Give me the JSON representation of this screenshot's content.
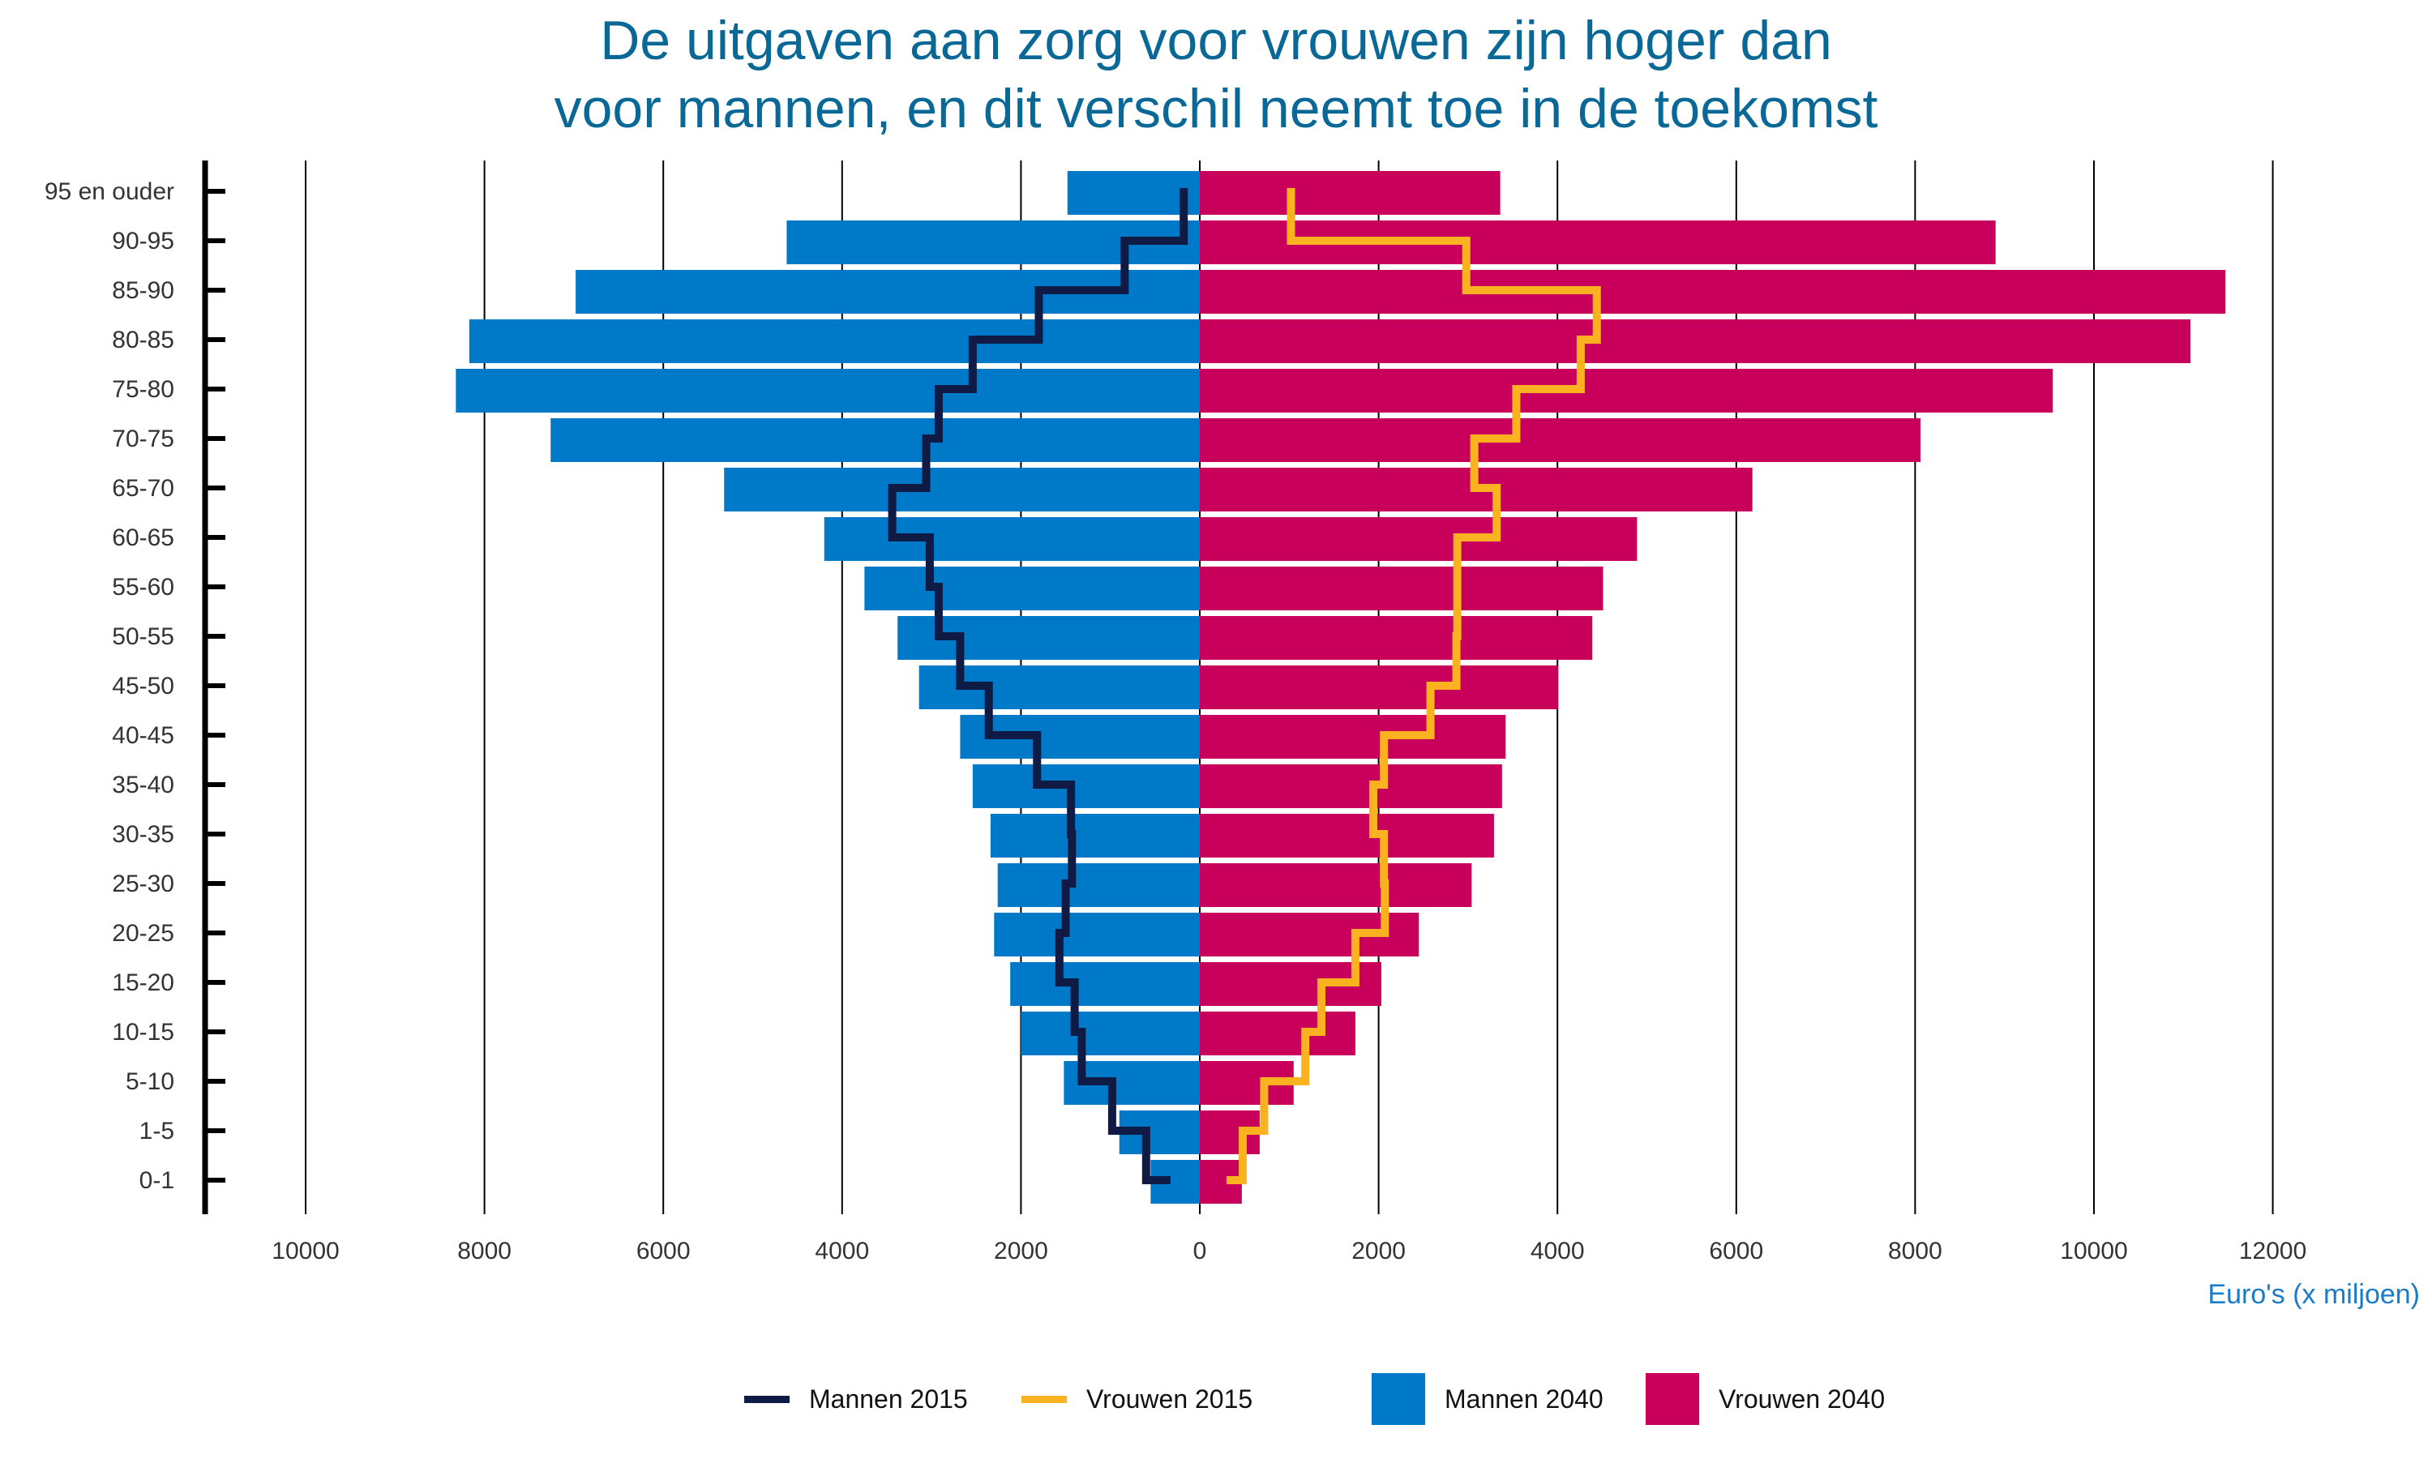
{
  "title": {
    "line1": "De uitgaven aan zorg voor vrouwen zijn hoger dan",
    "line2": "voor mannen, en dit verschil neemt toe in de toekomst"
  },
  "colors": {
    "mannen_2040": "#0079c8",
    "vrouwen_2040": "#c8005b",
    "mannen_2015": "#0f1a45",
    "vrouwen_2015": "#fbb220",
    "title": "#0a6896",
    "xlabel": "#1a7bc6"
  },
  "legend": {
    "mannen_2015": "Mannen 2015",
    "vrouwen_2015": "Vrouwen 2015",
    "mannen_2040": "Mannen 2040",
    "vrouwen_2040": "Vrouwen 2040"
  },
  "chart_data": {
    "type": "bar",
    "orientation": "horizontal-population-pyramid",
    "title": "De uitgaven aan zorg voor vrouwen zijn hoger dan voor mannen, en dit verschil neemt toe in de toekomst",
    "xlabel": "Euro's (x miljoen)",
    "ylabel": "",
    "categories": [
      "0-1",
      "1-5",
      "5-10",
      "10-15",
      "15-20",
      "20-25",
      "25-30",
      "30-35",
      "35-40",
      "40-45",
      "45-50",
      "50-55",
      "55-60",
      "60-65",
      "65-70",
      "70-75",
      "75-80",
      "80-85",
      "85-90",
      "90-95",
      "95 en ouder"
    ],
    "x_ticks": [
      "10000",
      "8000",
      "6000",
      "4000",
      "2000",
      "0",
      "2000",
      "4000",
      "6000",
      "8000",
      "10000",
      "12000"
    ],
    "xlim_left": [
      0,
      10000
    ],
    "xlim_right": [
      0,
      12000
    ],
    "grid": "vertical",
    "legend_position": "bottom",
    "series": [
      {
        "name": "Mannen 2040",
        "kind": "bar",
        "side": "left",
        "values": [
          550,
          900,
          1520,
          2000,
          2120,
          2300,
          2260,
          2340,
          2540,
          2680,
          3140,
          3380,
          3750,
          4200,
          5320,
          7260,
          8320,
          8170,
          6980,
          4620,
          1480
        ]
      },
      {
        "name": "Vrouwen 2040",
        "kind": "bar",
        "side": "right",
        "values": [
          470,
          670,
          1050,
          1740,
          2030,
          2450,
          3040,
          3290,
          3380,
          3420,
          4010,
          4390,
          4510,
          4890,
          6180,
          8060,
          9540,
          11080,
          11470,
          8900,
          3360
        ]
      },
      {
        "name": "Mannen 2015",
        "kind": "step",
        "side": "left",
        "values": [
          600,
          980,
          1320,
          1400,
          1570,
          1500,
          1430,
          1440,
          1820,
          2360,
          2680,
          2920,
          3020,
          3440,
          3060,
          2920,
          2540,
          1800,
          840,
          180,
          180
        ]
      },
      {
        "name": "Vrouwen 2015",
        "kind": "step",
        "side": "right",
        "values": [
          480,
          720,
          1180,
          1360,
          1740,
          2070,
          2060,
          1940,
          2060,
          2580,
          2870,
          2880,
          2880,
          3320,
          3070,
          3540,
          4260,
          4440,
          2980,
          1020,
          1020
        ]
      }
    ]
  }
}
